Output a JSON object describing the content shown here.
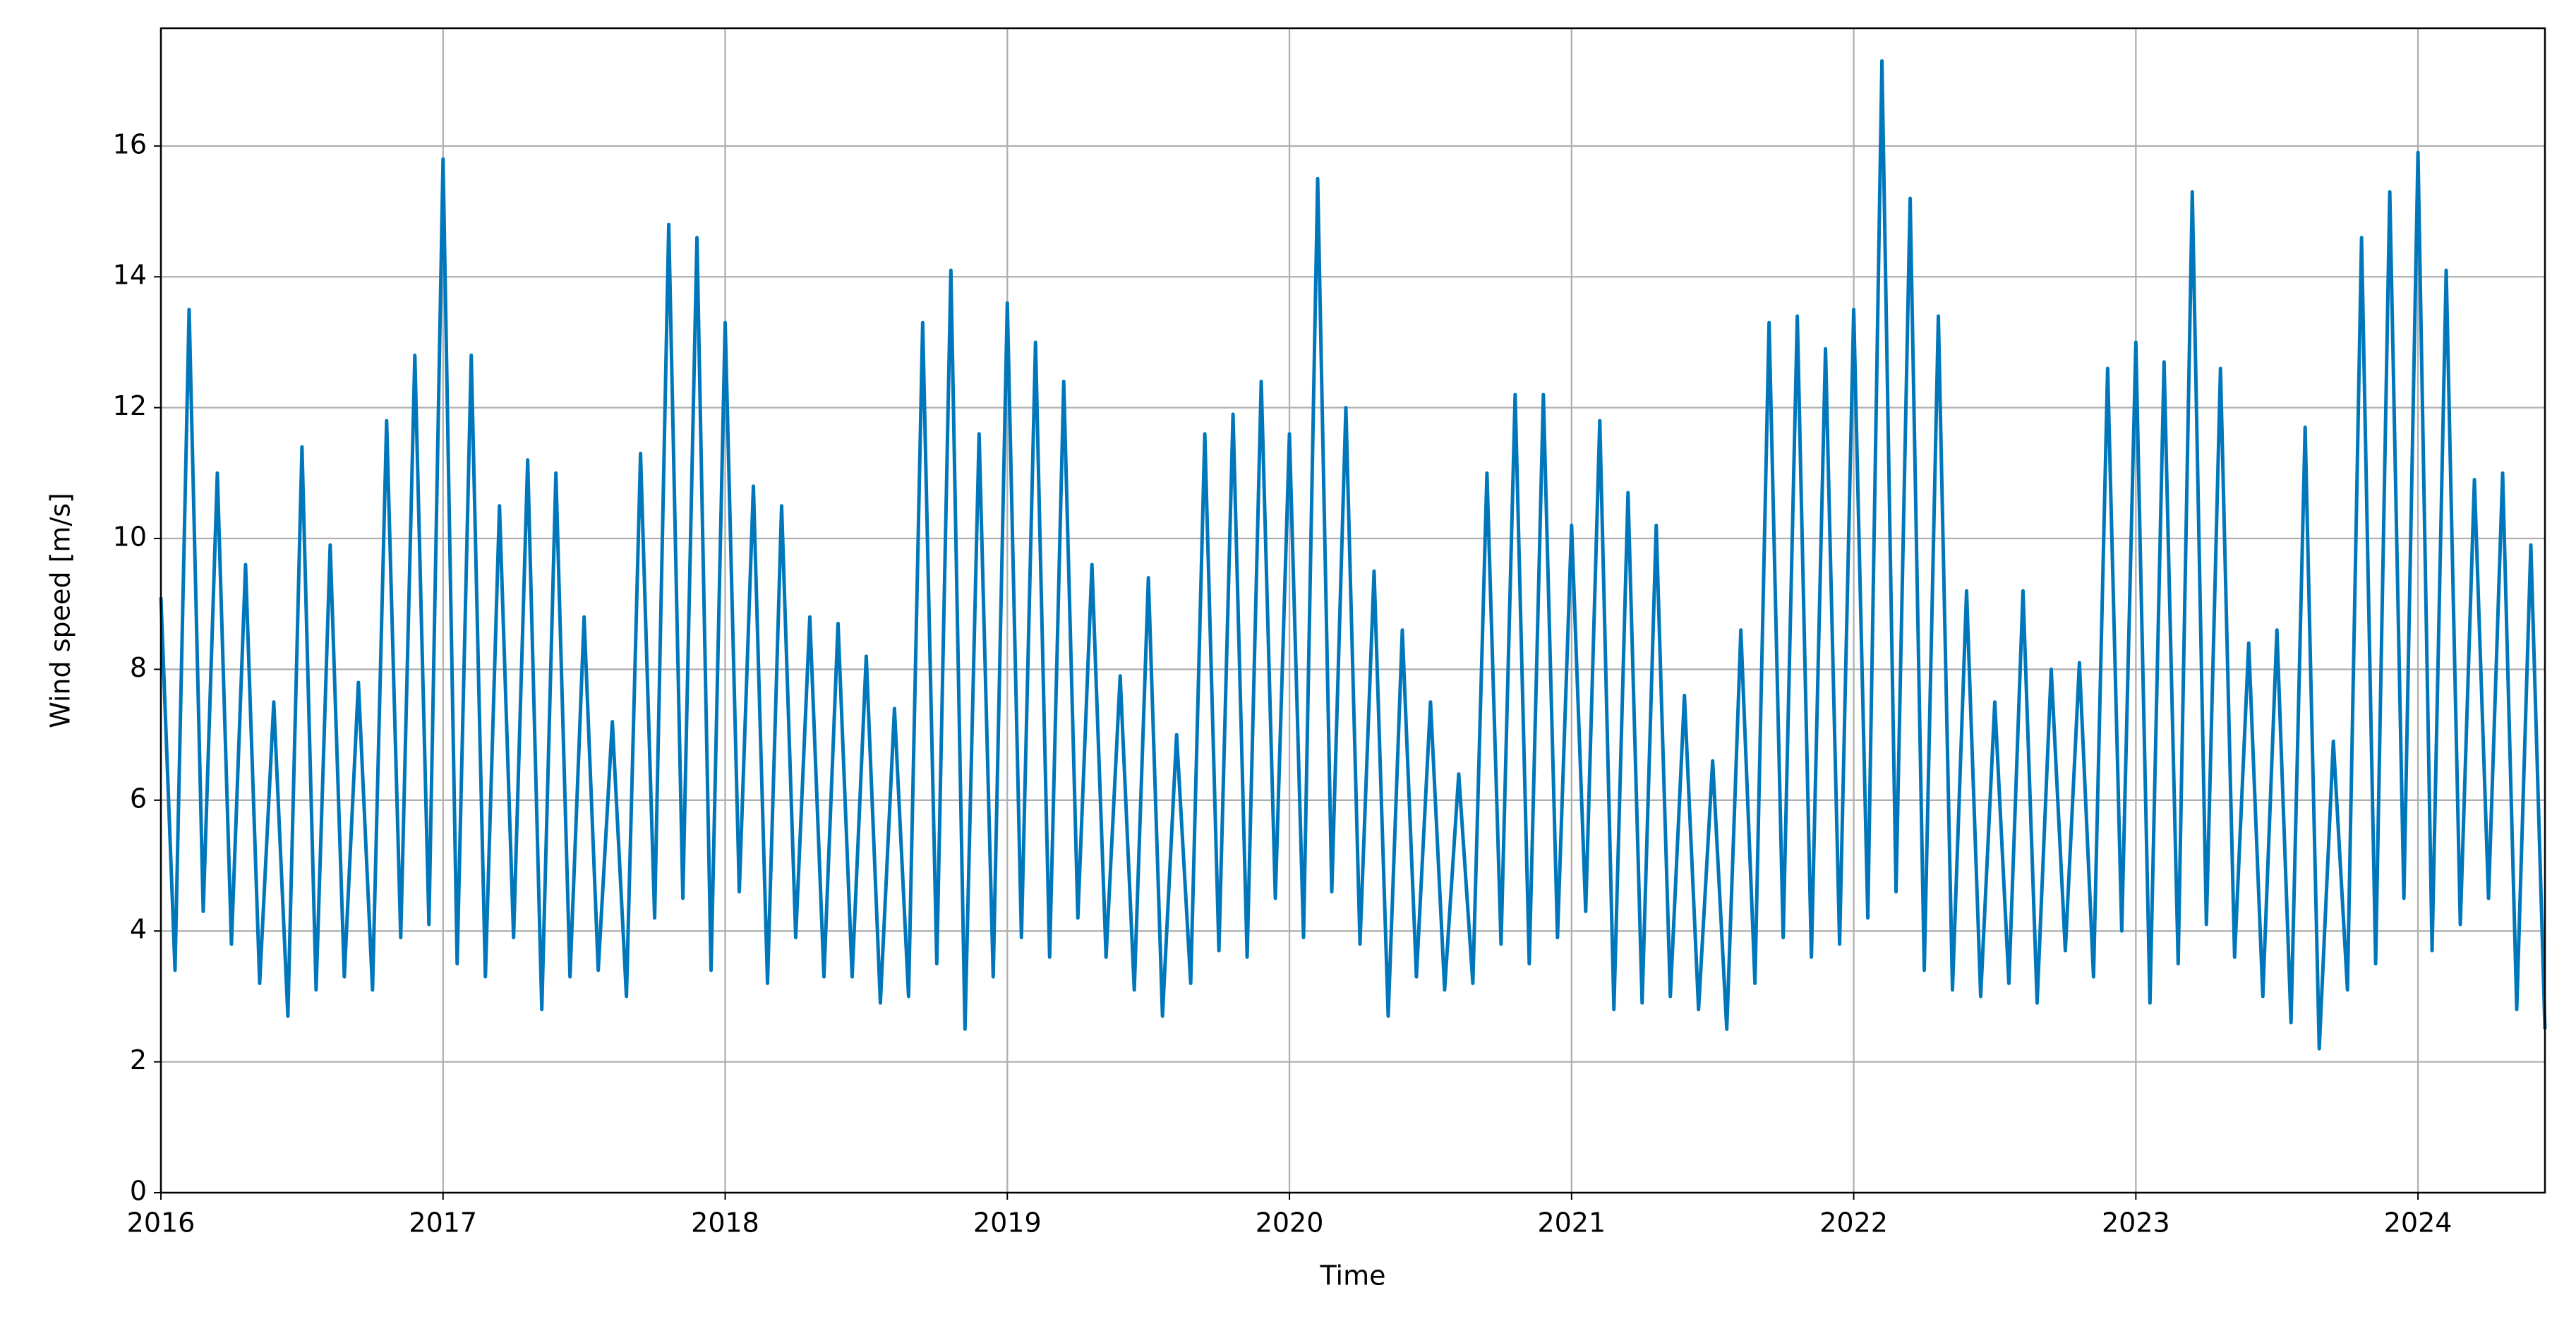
{
  "chart_data": {
    "type": "line",
    "xlabel": "Time",
    "ylabel": "Wind speed [m/s]",
    "xlim": [
      2016,
      2024.45
    ],
    "xticks": [
      2016,
      2017,
      2018,
      2019,
      2020,
      2021,
      2022,
      2023,
      2024
    ],
    "ylim": [
      0,
      17.8
    ],
    "yticks": [
      0,
      2,
      4,
      6,
      8,
      10,
      12,
      14,
      16
    ],
    "grid": true,
    "color": "#0077bb",
    "x": [
      2016.0,
      2016.05,
      2016.1,
      2016.15,
      2016.2,
      2016.25,
      2016.3,
      2016.35,
      2016.4,
      2016.45,
      2016.5,
      2016.55,
      2016.6,
      2016.65,
      2016.7,
      2016.75,
      2016.8,
      2016.85,
      2016.9,
      2016.95,
      2017.0,
      2017.05,
      2017.1,
      2017.15,
      2017.2,
      2017.25,
      2017.3,
      2017.35,
      2017.4,
      2017.45,
      2017.5,
      2017.55,
      2017.6,
      2017.65,
      2017.7,
      2017.75,
      2017.8,
      2017.85,
      2017.9,
      2017.95,
      2018.0,
      2018.05,
      2018.1,
      2018.15,
      2018.2,
      2018.25,
      2018.3,
      2018.35,
      2018.4,
      2018.45,
      2018.5,
      2018.55,
      2018.6,
      2018.65,
      2018.7,
      2018.75,
      2018.8,
      2018.85,
      2018.9,
      2018.95,
      2019.0,
      2019.05,
      2019.1,
      2019.15,
      2019.2,
      2019.25,
      2019.3,
      2019.35,
      2019.4,
      2019.45,
      2019.5,
      2019.55,
      2019.6,
      2019.65,
      2019.7,
      2019.75,
      2019.8,
      2019.85,
      2019.9,
      2019.95,
      2020.0,
      2020.05,
      2020.1,
      2020.15,
      2020.2,
      2020.25,
      2020.3,
      2020.35,
      2020.4,
      2020.45,
      2020.5,
      2020.55,
      2020.6,
      2020.65,
      2020.7,
      2020.75,
      2020.8,
      2020.85,
      2020.9,
      2020.95,
      2021.0,
      2021.05,
      2021.1,
      2021.15,
      2021.2,
      2021.25,
      2021.3,
      2021.35,
      2021.4,
      2021.45,
      2021.5,
      2021.55,
      2021.6,
      2021.65,
      2021.7,
      2021.75,
      2021.8,
      2021.85,
      2021.9,
      2021.95,
      2022.0,
      2022.05,
      2022.1,
      2022.15,
      2022.2,
      2022.25,
      2022.3,
      2022.35,
      2022.4,
      2022.45,
      2022.5,
      2022.55,
      2022.6,
      2022.65,
      2022.7,
      2022.75,
      2022.8,
      2022.85,
      2022.9,
      2022.95,
      2023.0,
      2023.05,
      2023.1,
      2023.15,
      2023.2,
      2023.25,
      2023.3,
      2023.35,
      2023.4,
      2023.45,
      2023.5,
      2023.55,
      2023.6,
      2023.65,
      2023.7,
      2023.75,
      2023.8,
      2023.85,
      2023.9,
      2023.95,
      2024.0,
      2024.05,
      2024.1,
      2024.15,
      2024.2,
      2024.25,
      2024.3,
      2024.35,
      2024.4,
      2024.45
    ],
    "values": [
      9.1,
      3.4,
      13.5,
      4.3,
      11.0,
      3.8,
      9.6,
      3.2,
      7.5,
      2.7,
      11.4,
      3.1,
      9.9,
      3.3,
      7.8,
      3.1,
      11.8,
      3.9,
      12.8,
      4.1,
      15.8,
      3.5,
      12.8,
      3.3,
      10.5,
      3.9,
      11.2,
      2.8,
      11.0,
      3.3,
      8.8,
      3.4,
      7.2,
      3.0,
      11.3,
      4.2,
      14.8,
      4.5,
      14.6,
      3.4,
      13.3,
      4.6,
      10.8,
      3.2,
      10.5,
      3.9,
      8.8,
      3.3,
      8.7,
      3.3,
      8.2,
      2.9,
      7.4,
      3.0,
      13.3,
      3.5,
      14.1,
      2.5,
      11.6,
      3.3,
      13.6,
      3.9,
      13.0,
      3.6,
      12.4,
      4.2,
      9.6,
      3.6,
      7.9,
      3.1,
      9.4,
      2.7,
      7.0,
      3.2,
      11.6,
      3.7,
      11.9,
      3.6,
      12.4,
      4.5,
      11.6,
      3.9,
      15.5,
      4.6,
      12.0,
      3.8,
      9.5,
      2.7,
      8.6,
      3.3,
      7.5,
      3.1,
      6.4,
      3.2,
      11.0,
      3.8,
      12.2,
      3.5,
      12.2,
      3.9,
      10.2,
      4.3,
      11.8,
      2.8,
      10.7,
      2.9,
      10.2,
      3.0,
      7.6,
      2.8,
      6.6,
      2.5,
      8.6,
      3.2,
      13.3,
      3.9,
      13.4,
      3.6,
      12.9,
      3.8,
      13.5,
      4.2,
      17.3,
      4.6,
      15.2,
      3.4,
      13.4,
      3.1,
      9.2,
      3.0,
      7.5,
      3.2,
      9.2,
      2.9,
      8.0,
      3.7,
      8.1,
      3.3,
      12.6,
      4.0,
      13.0,
      2.9,
      12.7,
      3.5,
      15.3,
      4.1,
      12.6,
      3.6,
      8.4,
      3.0,
      8.6,
      2.6,
      11.7,
      2.2,
      6.9,
      3.1,
      14.6,
      3.5,
      15.3,
      4.5,
      15.9,
      3.7,
      14.1,
      4.1,
      10.9,
      4.5,
      11.0,
      2.8,
      9.9,
      2.5
    ]
  }
}
